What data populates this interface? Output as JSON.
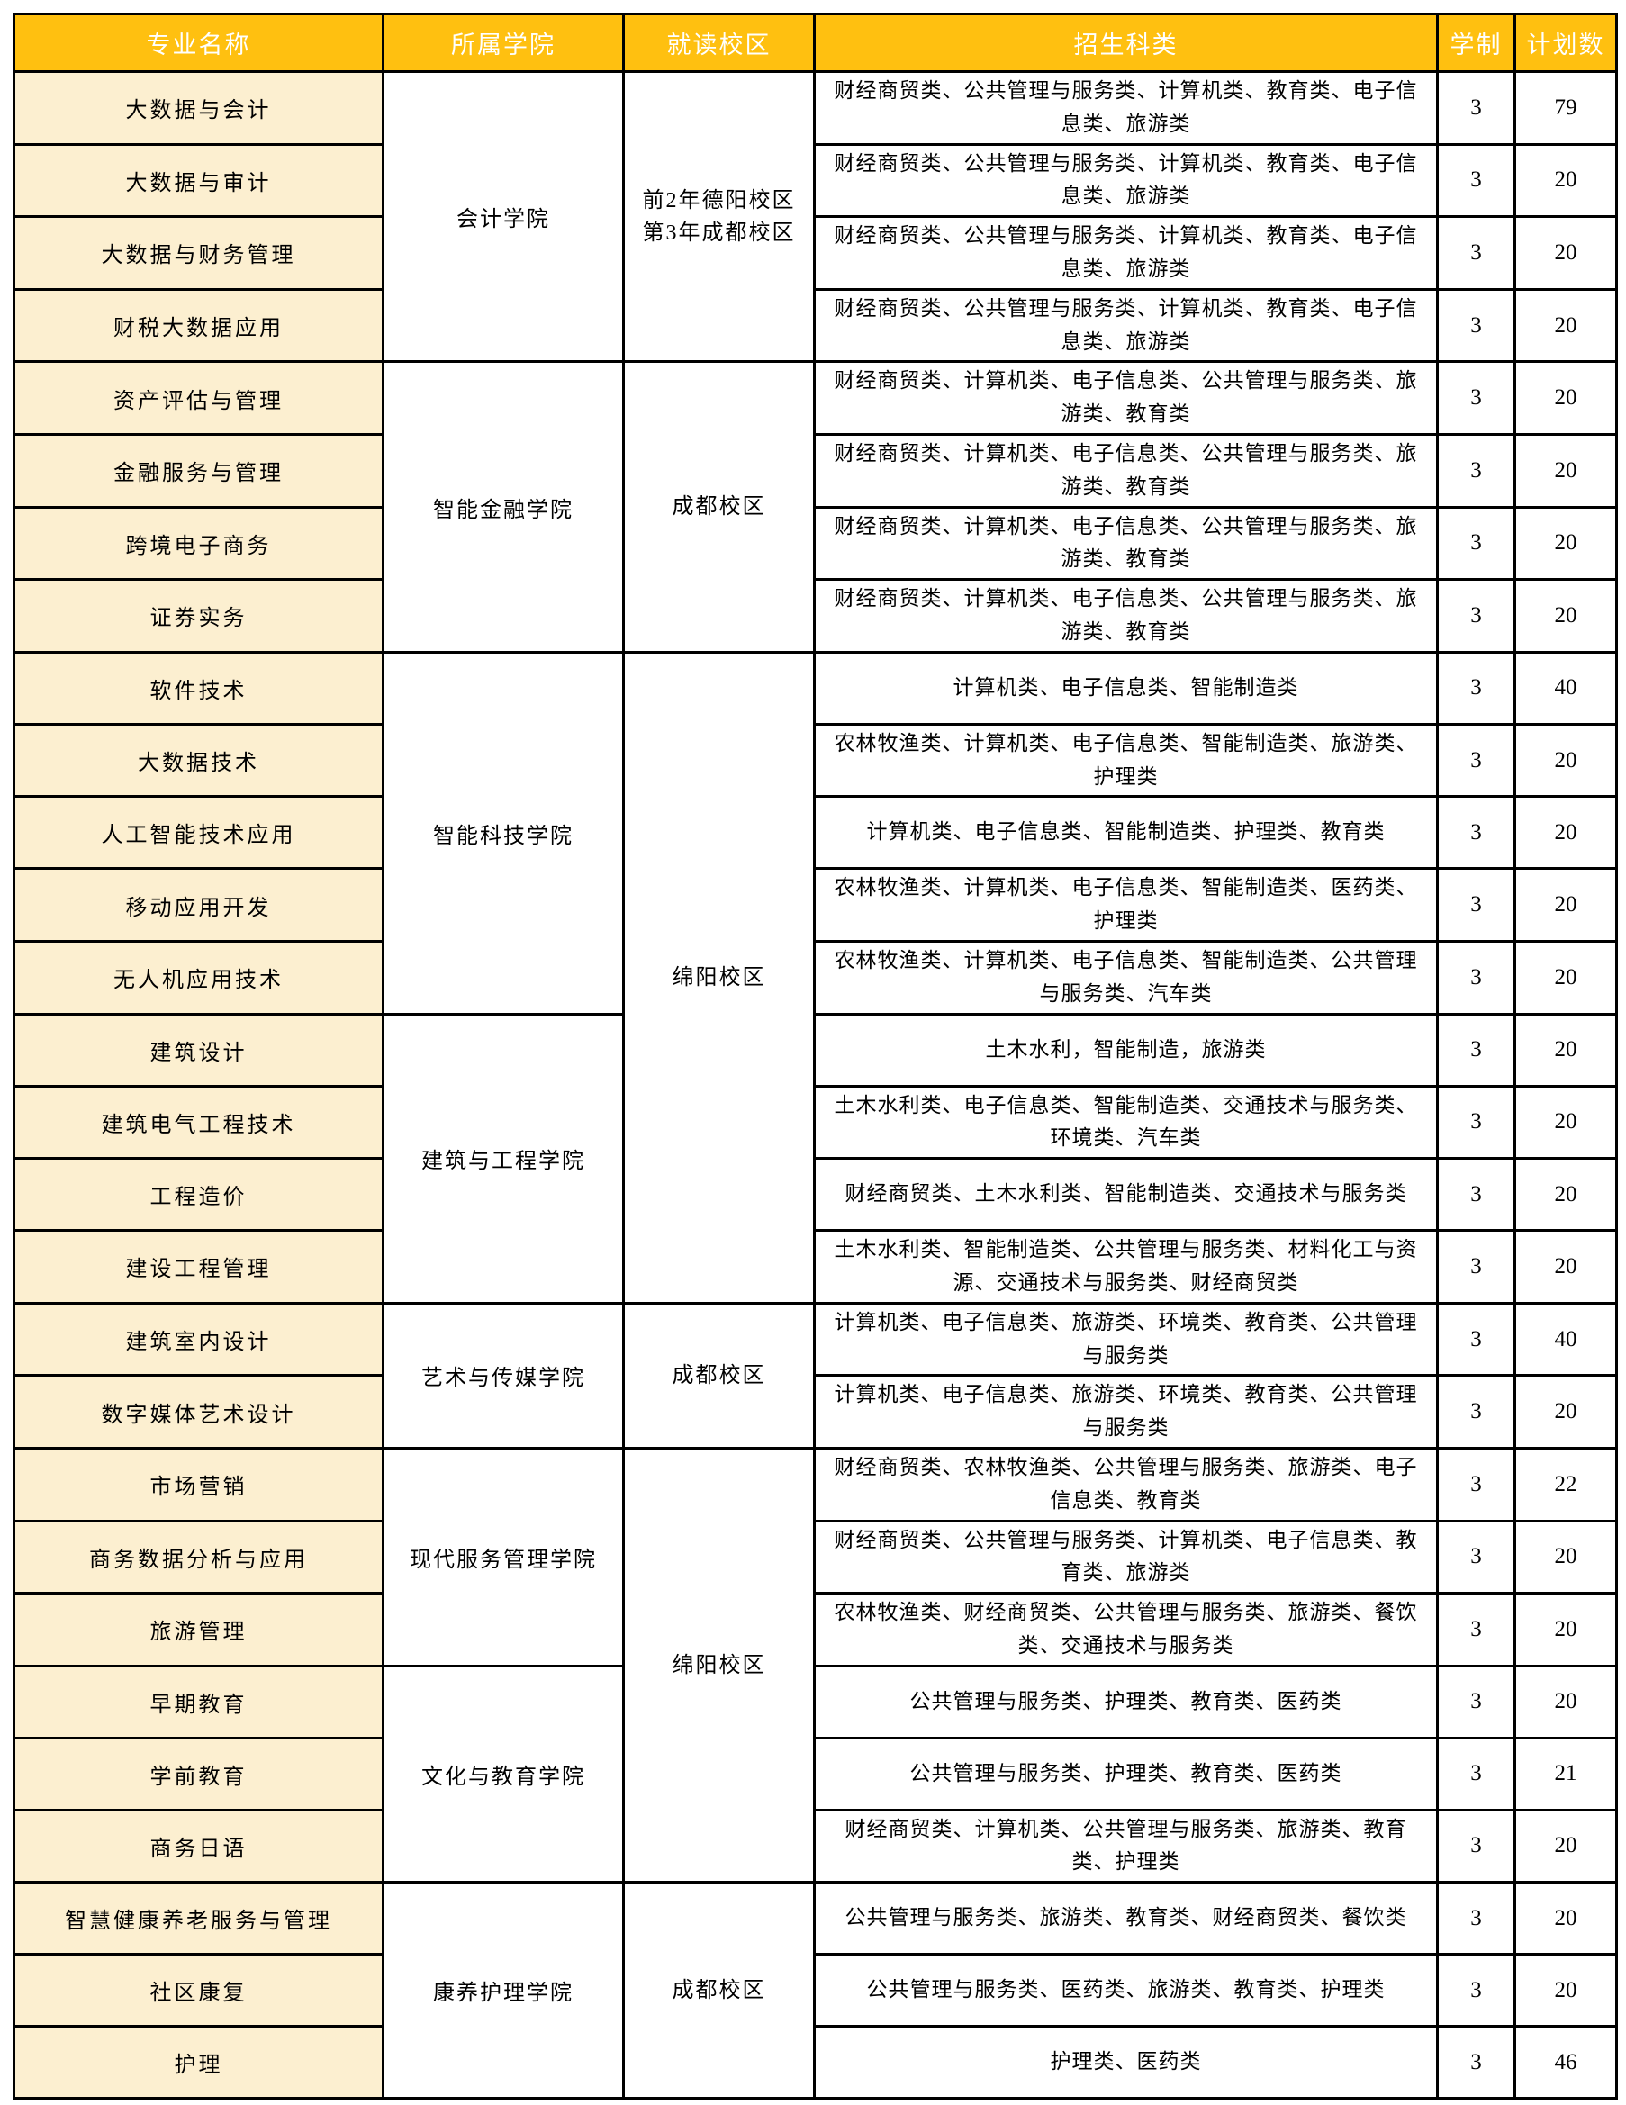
{
  "colors": {
    "header_bg": "#FFC010",
    "header_text": "#FFFFFF",
    "major_row_bg": "#FCEFD0",
    "border": "#000000",
    "body_text": "#000000",
    "page_bg": "#FFFFFF"
  },
  "header": {
    "columns": [
      "专业名称",
      "所属学院",
      "就读校区",
      "招生科类",
      "学制",
      "计划数"
    ]
  },
  "rows": [
    {
      "major": "大数据与会计",
      "college": "会计学院",
      "college_span": 4,
      "campus": "前2年德阳校区\n第3年成都校区",
      "campus_span": 4,
      "categories": "财经商贸类、公共管理与服务类、计算机类、教育类、电子信息类、旅游类",
      "years": "3",
      "plan": "79"
    },
    {
      "major": "大数据与审计",
      "categories": "财经商贸类、公共管理与服务类、计算机类、教育类、电子信息类、旅游类",
      "years": "3",
      "plan": "20"
    },
    {
      "major": "大数据与财务管理",
      "categories": "财经商贸类、公共管理与服务类、计算机类、教育类、电子信息类、旅游类",
      "years": "3",
      "plan": "20"
    },
    {
      "major": "财税大数据应用",
      "categories": "财经商贸类、公共管理与服务类、计算机类、教育类、电子信息类、旅游类",
      "years": "3",
      "plan": "20"
    },
    {
      "major": "资产评估与管理",
      "college": "智能金融学院",
      "college_span": 4,
      "campus": "成都校区",
      "campus_span": 4,
      "categories": "财经商贸类、计算机类、电子信息类、公共管理与服务类、旅游类、教育类",
      "years": "3",
      "plan": "20"
    },
    {
      "major": "金融服务与管理",
      "categories": "财经商贸类、计算机类、电子信息类、公共管理与服务类、旅游类、教育类",
      "years": "3",
      "plan": "20"
    },
    {
      "major": "跨境电子商务",
      "categories": "财经商贸类、计算机类、电子信息类、公共管理与服务类、旅游类、教育类",
      "years": "3",
      "plan": "20"
    },
    {
      "major": "证券实务",
      "categories": "财经商贸类、计算机类、电子信息类、公共管理与服务类、旅游类、教育类",
      "years": "3",
      "plan": "20"
    },
    {
      "major": "软件技术",
      "college": "智能科技学院",
      "college_span": 5,
      "campus": "绵阳校区",
      "campus_span": 9,
      "categories": "计算机类、电子信息类、智能制造类",
      "years": "3",
      "plan": "40"
    },
    {
      "major": "大数据技术",
      "categories": "农林牧渔类、计算机类、电子信息类、智能制造类、旅游类、护理类",
      "years": "3",
      "plan": "20"
    },
    {
      "major": "人工智能技术应用",
      "categories": "计算机类、电子信息类、智能制造类、护理类、教育类",
      "years": "3",
      "plan": "20"
    },
    {
      "major": "移动应用开发",
      "categories": "农林牧渔类、计算机类、电子信息类、智能制造类、医药类、护理类",
      "years": "3",
      "plan": "20"
    },
    {
      "major": "无人机应用技术",
      "categories": "农林牧渔类、计算机类、电子信息类、智能制造类、公共管理与服务类、汽车类",
      "years": "3",
      "plan": "20"
    },
    {
      "major": "建筑设计",
      "college": "建筑与工程学院",
      "college_span": 4,
      "categories": "土木水利，智能制造，旅游类",
      "years": "3",
      "plan": "20"
    },
    {
      "major": "建筑电气工程技术",
      "categories": "土木水利类、电子信息类、智能制造类、交通技术与服务类、环境类、汽车类",
      "years": "3",
      "plan": "20"
    },
    {
      "major": "工程造价",
      "categories": "财经商贸类、土木水利类、智能制造类、交通技术与服务类",
      "years": "3",
      "plan": "20"
    },
    {
      "major": "建设工程管理",
      "categories": "土木水利类、智能制造类、公共管理与服务类、材料化工与资源、交通技术与服务类、财经商贸类",
      "years": "3",
      "plan": "20"
    },
    {
      "major": "建筑室内设计",
      "college": "艺术与传媒学院",
      "college_span": 2,
      "campus": "成都校区",
      "campus_span": 2,
      "categories": "计算机类、电子信息类、旅游类、环境类、教育类、公共管理与服务类",
      "years": "3",
      "plan": "40"
    },
    {
      "major": "数字媒体艺术设计",
      "categories": "计算机类、电子信息类、旅游类、环境类、教育类、公共管理与服务类",
      "years": "3",
      "plan": "20"
    },
    {
      "major": "市场营销",
      "college": "现代服务管理学院",
      "college_span": 3,
      "campus": "绵阳校区",
      "campus_span": 6,
      "categories": "财经商贸类、农林牧渔类、公共管理与服务类、旅游类、电子信息类、教育类",
      "years": "3",
      "plan": "22"
    },
    {
      "major": "商务数据分析与应用",
      "categories": "财经商贸类、公共管理与服务类、计算机类、电子信息类、教育类、旅游类",
      "years": "3",
      "plan": "20"
    },
    {
      "major": "旅游管理",
      "categories": "农林牧渔类、财经商贸类、公共管理与服务类、旅游类、餐饮类、交通技术与服务类",
      "years": "3",
      "plan": "20"
    },
    {
      "major": "早期教育",
      "college": "文化与教育学院",
      "college_span": 3,
      "categories": "公共管理与服务类、护理类、教育类、医药类",
      "years": "3",
      "plan": "20"
    },
    {
      "major": "学前教育",
      "categories": "公共管理与服务类、护理类、教育类、医药类",
      "years": "3",
      "plan": "21"
    },
    {
      "major": "商务日语",
      "categories": "财经商贸类、计算机类、公共管理与服务类、旅游类、教育类、护理类",
      "years": "3",
      "plan": "20"
    },
    {
      "major": "智慧健康养老服务与管理",
      "college": "康养护理学院",
      "college_span": 3,
      "campus": "成都校区",
      "campus_span": 3,
      "categories": "公共管理与服务类、旅游类、教育类、财经商贸类、餐饮类",
      "years": "3",
      "plan": "20"
    },
    {
      "major": "社区康复",
      "categories": "公共管理与服务类、医药类、旅游类、教育类、护理类",
      "years": "3",
      "plan": "20"
    },
    {
      "major": "护理",
      "categories": "护理类、医药类",
      "years": "3",
      "plan": "46"
    }
  ]
}
